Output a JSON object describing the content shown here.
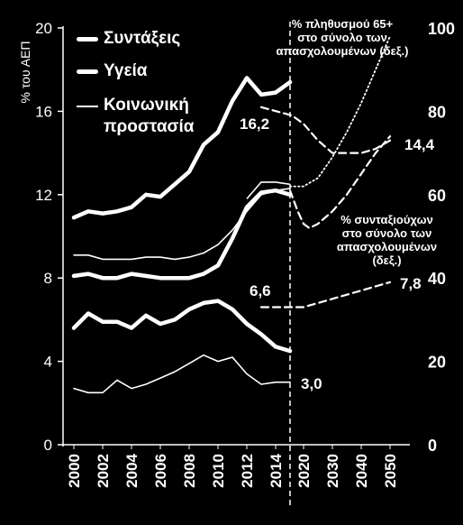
{
  "chart_data": {
    "type": "line",
    "ylabel_left": "% του ΑΕΠ",
    "ylim_left": [
      0,
      20
    ],
    "yticks_left": [
      "0",
      "4",
      "8",
      "12",
      "16",
      "20"
    ],
    "ylim_right": [
      0,
      100
    ],
    "yticks_right": [
      "0",
      "20",
      "40",
      "60",
      "80",
      "100"
    ],
    "x_ticks": [
      "2000",
      "2002",
      "2004",
      "2006",
      "2008",
      "2010",
      "2012",
      "2014",
      "2020",
      "2030",
      "2040",
      "2050"
    ],
    "divider_between": [
      "2015",
      "2020"
    ],
    "legend": {
      "pensions": "Συντάξεις",
      "health": "Υγεία",
      "social": "Κοινωνική προστασία"
    },
    "series": [
      {
        "name": "Συντάξεις",
        "axis": "left",
        "style": "thick",
        "x": [
          2000,
          2001,
          2002,
          2003,
          2004,
          2005,
          2006,
          2007,
          2008,
          2009,
          2010,
          2011,
          2012,
          2013,
          2014,
          2015
        ],
        "y": [
          10.9,
          11.2,
          11.1,
          11.2,
          11.4,
          12.0,
          11.9,
          12.5,
          13.1,
          14.4,
          15.0,
          16.5,
          17.6,
          16.8,
          16.9,
          17.4
        ],
        "envelope": {
          "x": [
            2012,
            2013,
            2014,
            2015
          ],
          "upper": [
            11.8,
            12.6,
            12.6,
            12.5
          ],
          "lower": [
            11.2,
            12.1,
            12.2,
            12.0
          ]
        }
      },
      {
        "name": "Υγεία",
        "axis": "left",
        "style": "thick",
        "x": [
          2000,
          2001,
          2002,
          2003,
          2004,
          2005,
          2006,
          2007,
          2008,
          2009,
          2010,
          2011,
          2012,
          2013,
          2014,
          2015
        ],
        "y": [
          5.6,
          6.3,
          5.9,
          5.9,
          5.6,
          6.2,
          5.8,
          6.0,
          6.5,
          6.8,
          6.9,
          6.5,
          5.8,
          5.3,
          4.7,
          4.5
        ]
      },
      {
        "name": "Κοινωνική προστασία",
        "axis": "left",
        "style": "thin",
        "x": [
          2000,
          2001,
          2002,
          2003,
          2004,
          2005,
          2006,
          2007,
          2008,
          2009,
          2010,
          2011,
          2012,
          2013,
          2014,
          2015
        ],
        "y": [
          2.7,
          2.5,
          2.5,
          3.1,
          2.7,
          2.9,
          3.2,
          3.5,
          3.9,
          4.3,
          4.0,
          4.2,
          3.4,
          2.9,
          3.0,
          3.0
        ]
      },
      {
        "name": "band_9",
        "axis": "left",
        "style": "thin",
        "x": [
          2000,
          2001,
          2002,
          2003,
          2004,
          2005,
          2006,
          2007,
          2008,
          2009,
          2010,
          2011,
          2012,
          2013,
          2014,
          2015
        ],
        "y": [
          9.1,
          9.1,
          8.9,
          8.9,
          8.9,
          9.0,
          9.0,
          8.9,
          9.0,
          9.2,
          9.6,
          10.3,
          11.2,
          12.0,
          12.2,
          12.3
        ]
      },
      {
        "name": "band_8",
        "axis": "left",
        "style": "thick",
        "x": [
          2000,
          2001,
          2002,
          2003,
          2004,
          2005,
          2006,
          2007,
          2008,
          2009,
          2010,
          2011,
          2012,
          2013,
          2014,
          2015
        ],
        "y": [
          8.1,
          8.2,
          8.0,
          8.0,
          8.2,
          8.1,
          8.0,
          8.0,
          8.0,
          8.2,
          8.6,
          9.9,
          11.4,
          12.1,
          12.2,
          12.0
        ]
      },
      {
        "name": "% πληθυσμού 65+ στο σύνολο των απασχολουμένων (δεξ.)",
        "axis": "right",
        "style": "dotted",
        "x": [
          2015,
          2020,
          2025,
          2030,
          2035,
          2040,
          2045,
          2050
        ],
        "y": [
          62,
          62,
          64,
          69,
          75,
          82,
          90,
          98
        ]
      },
      {
        "name": "projection_top",
        "axis": "right",
        "style": "dashed",
        "x": [
          2013,
          2016,
          2020,
          2025,
          2030,
          2035,
          2040,
          2045,
          2050
        ],
        "y": [
          81,
          79,
          77,
          73,
          70,
          70,
          70,
          71,
          73
        ]
      },
      {
        "name": "% συνταξιούχων στο σύνολο των απασχολουμένων (δεξ.)",
        "axis": "right",
        "style": "dashed",
        "x": [
          2015,
          2018,
          2020,
          2022,
          2025,
          2030,
          2035,
          2040,
          2045,
          2050
        ],
        "y": [
          61,
          56,
          53,
          52,
          53,
          56,
          60,
          65,
          70,
          74
        ]
      },
      {
        "name": "projection_low",
        "axis": "right",
        "style": "dashed",
        "x": [
          2013,
          2016,
          2020,
          2025,
          2030,
          2035,
          2040,
          2045,
          2050
        ],
        "y": [
          33,
          33,
          33,
          34,
          35,
          36,
          37,
          38,
          39
        ]
      }
    ],
    "annotations": {
      "pop65": "% πληθυσμού 65+ στο σύνολο των απασχολουμένων (δεξ.)",
      "pop65_lines": [
        "% πληθυσμού 65+",
        "στο σύνολο των",
        "απασχολουμένων (δεξ.)"
      ],
      "pensioners_lines": [
        "% συνταξιούχων",
        "στο σύνολο των",
        "απασχολουμένων",
        "(δεξ.)"
      ],
      "value_16_2": "16,2",
      "value_14_4": "14,4",
      "value_6_6": "6,6",
      "value_7_8": "7,8",
      "value_3_0": "3,0"
    }
  }
}
